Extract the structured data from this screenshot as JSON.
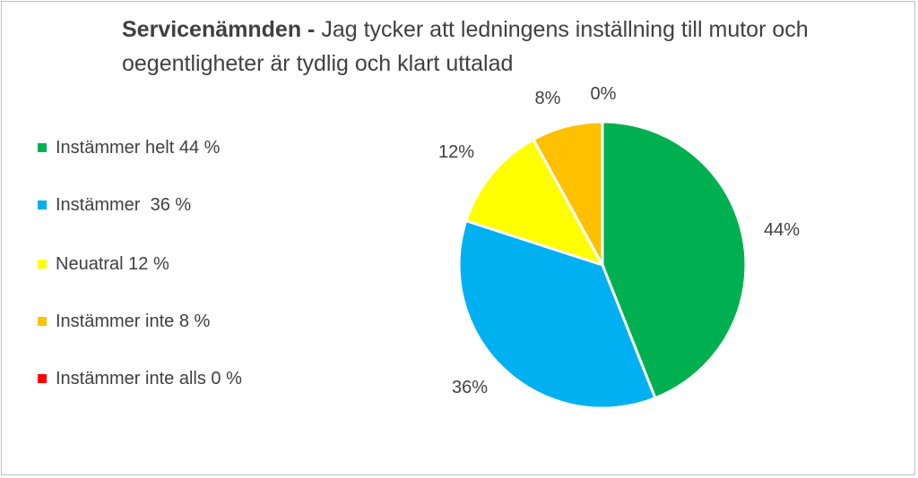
{
  "chart_data": {
    "type": "pie",
    "title_bold": "Servicenämnden - ",
    "title_rest": "Jag tycker att ledningens inställning till mutor och oegentligheter är tydlig och klart uttalad",
    "categories": [
      "Instämmer helt 44 %",
      "Instämmer  36 %",
      "Neuatral 12 %",
      "Instämmer inte 8 %",
      "Instämmer inte alls 0 %"
    ],
    "values": [
      44,
      36,
      12,
      8,
      0
    ],
    "data_labels": [
      "44%",
      "36%",
      "12%",
      "8%",
      "0%"
    ],
    "colors": [
      "#00b050",
      "#00b0f0",
      "#ffff00",
      "#ffc000",
      "#ff0000"
    ],
    "legend_position": "left"
  }
}
